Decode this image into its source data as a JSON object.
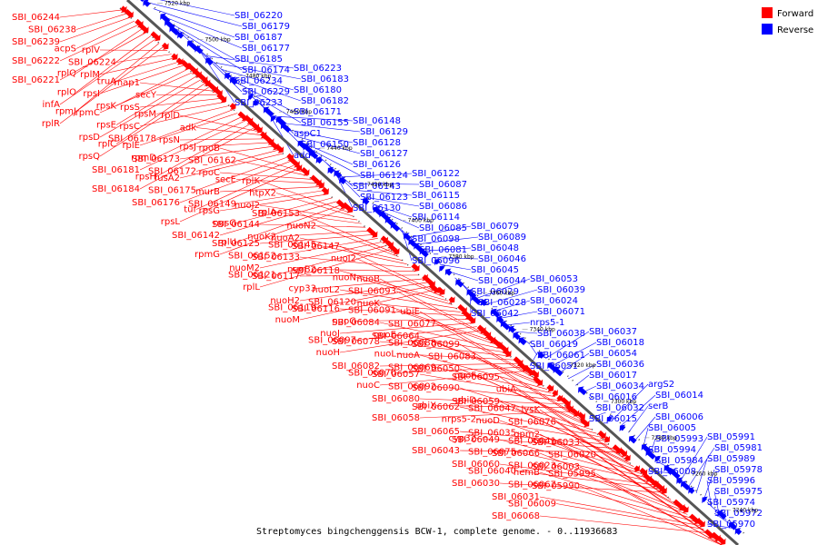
{
  "title": "Streptomyces bingchenggensis BCW-1, complete genome. - 0..11936683",
  "legend": {
    "forward_label": "Forward",
    "reverse_label": "Reverse",
    "forward_color": "#ff0000",
    "reverse_color": "#0000ff"
  },
  "axis_ticks": [
    "7520 kbp",
    "7500 kbp",
    "7480 kbp",
    "7460 kbp",
    "7440 kbp",
    "7420 kbp",
    "7400 kbp",
    "7380 kbp",
    "7360 kbp",
    "7340 kbp",
    "7320 kbp",
    "7300 kbp",
    "7280 kbp",
    "7260 kbp",
    "7240 kbp"
  ],
  "forward_genes": [
    "SBI_06244",
    "SBI_06238",
    "SBI_06239",
    "acpS",
    "SBI_06222",
    "rplQ",
    "SBI_06221",
    "rplO",
    "infA",
    "rpmJ",
    "rplR",
    "rplV",
    "SBI_06224",
    "rplM",
    "truA",
    "rpsI",
    "rpsK",
    "rpmC",
    "rpsE",
    "rpsD",
    "rplC",
    "rpsQ",
    "map1",
    "secY",
    "rpsS",
    "rpsM",
    "rpsC",
    "SBI_06178",
    "rplE",
    "rpmD",
    "SBI_06181",
    "rpsH",
    "SBI_06184",
    "rplD",
    "adk",
    "rpsN",
    "rpsJ",
    "SBI_06173",
    "SBI_06172",
    "fusA2",
    "SBI_06175",
    "SBI_06176",
    "tuf",
    "rpsL",
    "rpoB",
    "SBI_06162",
    "rpoC",
    "secE",
    "murB",
    "SBI_06149",
    "rpsG",
    "nusG",
    "SBI_06142",
    "rplU",
    "rpmG",
    "rplK",
    "htpX2",
    "nuoJ2",
    "rplA",
    "SBI_06144",
    "nuoK2",
    "SBI_06125",
    "SBI_06152",
    "nuoM2",
    "SBI_06121",
    "rplL",
    "SBI_06153",
    "nuoN2",
    "nuoA2",
    "SBI_06145",
    "SBI_06133",
    "nuoB2",
    "SBI_06117",
    "cyp33",
    "nuoH2",
    "SBI_06119",
    "nuoM",
    "SBI_06147",
    "nuoI2",
    "SBI_06118",
    "nuoN",
    "nuoL2",
    "SBI_06120",
    "SBI_06116",
    "nuoG",
    "nuoJ",
    "SBI_06097",
    "nuoH",
    "nuoB",
    "SBI_06093",
    "nuoK",
    "SBI_06091",
    "SBI_06084",
    "nuoE",
    "SBI_06078",
    "nuoL",
    "SBI_06082",
    "SBI_06070",
    "nuoC",
    "ubiE",
    "SBI_06077",
    "SBI_06064",
    "SBI_06088",
    "nuoA",
    "SBI_06069",
    "SBI_06057",
    "SBI_06092",
    "SBI_06080",
    "ubiX",
    "SBI_06058",
    "SBI_06099",
    "SBI_06083",
    "SBI_06050",
    "nuoF",
    "SBI_06090",
    "ubiD",
    "SBI_06062",
    "nrps5-2",
    "SBI_06065",
    "cyp32",
    "SBI_06043",
    "SBI_06095",
    "ubiA",
    "SBI_06059",
    "SBI_06047",
    "nuoD",
    "SBI_06035",
    "SBI_06049",
    "SBI_06075",
    "SBI_06060",
    "SBI_06040",
    "SBI_06030",
    "lysK",
    "SBI_06076",
    "gpm2",
    "SBI_06041",
    "SBI_06066",
    "SBI_06023",
    "hemB",
    "SBI_06067",
    "SBI_06031",
    "SBI_06009",
    "SBI_06068",
    "SBI_06033",
    "SBI_06020",
    "SBI_06003",
    "SBI_05995",
    "SBI_05990"
  ],
  "reverse_genes": [
    "SBI_06220",
    "SBI_06179",
    "SBI_06187",
    "SBI_06177",
    "SBI_06185",
    "SBI_06174",
    "SBI_06234",
    "SBI_06229",
    "SBI_06233",
    "SBI_06223",
    "SBI_06183",
    "SBI_06180",
    "SBI_06182",
    "SBI_06171",
    "SBI_06155",
    "aspC1",
    "SBI_06150",
    "add4",
    "SBI_06148",
    "SBI_06129",
    "SBI_06128",
    "SBI_06127",
    "SBI_06126",
    "SBI_06124",
    "SBI_06143",
    "SBI_06123",
    "SBI_06130",
    "SBI_06122",
    "SBI_06087",
    "SBI_06115",
    "SBI_06086",
    "SBI_06114",
    "SBI_06085",
    "SBI_06098",
    "SBI_06081",
    "SBI_06096",
    "SBI_06079",
    "SBI_06089",
    "SBI_06048",
    "SBI_06046",
    "SBI_06045",
    "SBI_06044",
    "SBI_06029",
    "SBI_06028",
    "SBI_06042",
    "SBI_06053",
    "SBI_06039",
    "SBI_06024",
    "SBI_06071",
    "nrps5-1",
    "SBI_06038",
    "SBI_06019",
    "SBI_06061",
    "SBI_06051",
    "SBI_06037",
    "SBI_06018",
    "SBI_06054",
    "SBI_06036",
    "SBI_06017",
    "SBI_06034",
    "SBI_06016",
    "SBI_06032",
    "SBI_06015",
    "argS2",
    "SBI_06014",
    "serB",
    "SBI_06006",
    "SBI_06005",
    "SBI_05993",
    "SBI_05994",
    "SBI_05984",
    "SBI_06008",
    "SBI_05991",
    "SBI_05981",
    "SBI_05989",
    "SBI_05978",
    "SBI_05996",
    "SBI_05975",
    "SBI_05974",
    "SBI_05972",
    "SBI_05970"
  ]
}
